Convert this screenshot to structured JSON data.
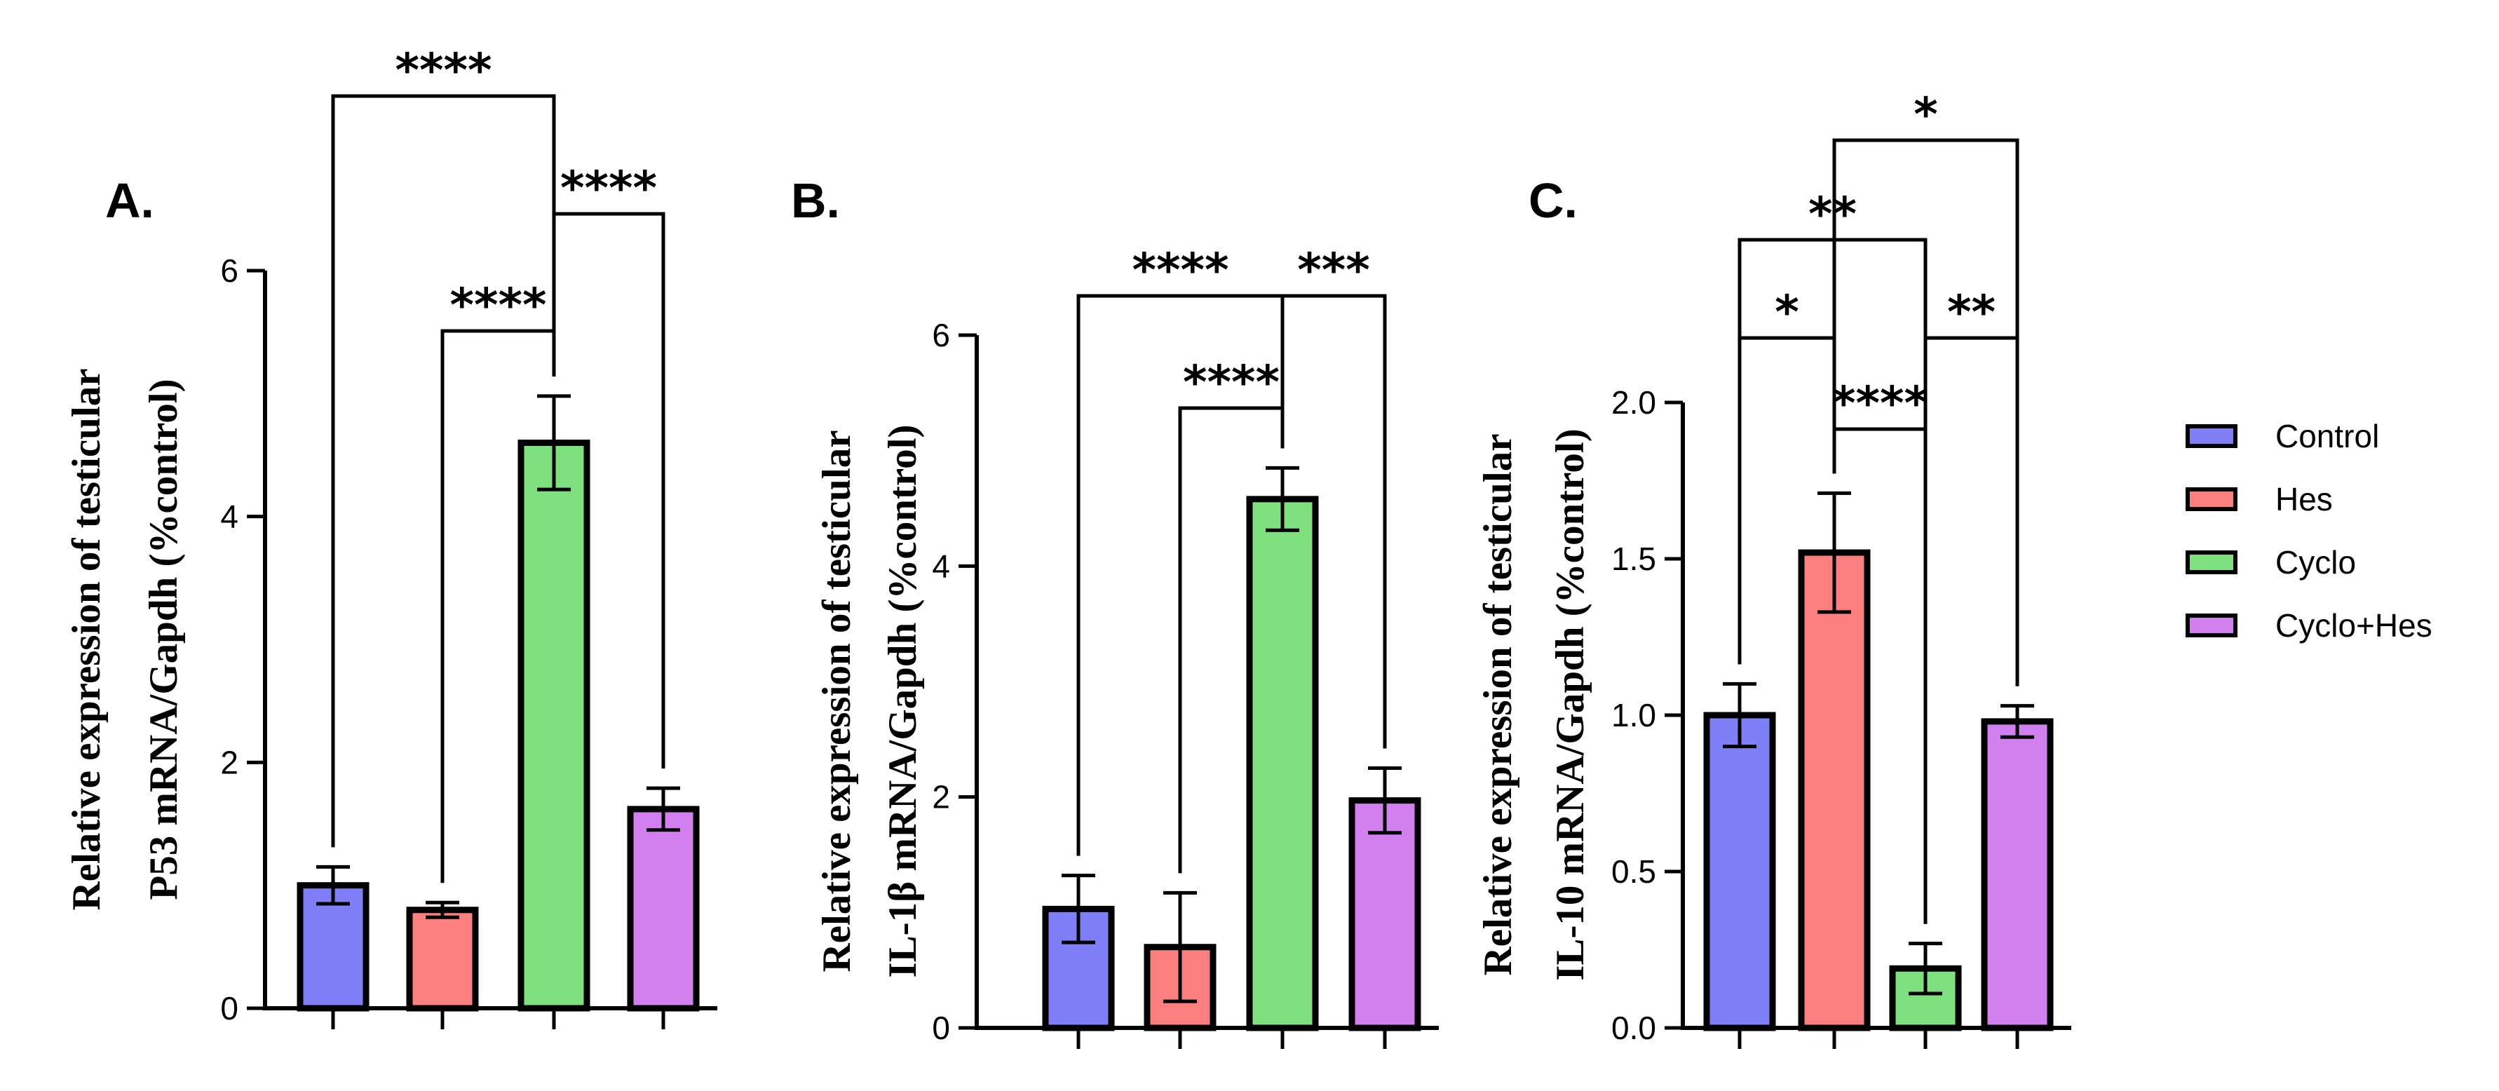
{
  "colors": {
    "Control": "#7f7ff7",
    "Hes": "#fb7f7f",
    "Cyclo": "#7fe07f",
    "Cyclo+Hes": "#d27ff0"
  },
  "legend": [
    "Control",
    "Hes",
    "Cyclo",
    "Cyclo+Hes"
  ],
  "chart_data": [
    {
      "type": "bar",
      "panel": "A.",
      "ylabel": [
        "Relative expression of testicular",
        "P53 mRNA/Gapdh (%control)"
      ],
      "categories": [
        "Control",
        "Hes",
        "Cyclo",
        "Cyclo+Hes"
      ],
      "values": [
        1.0,
        0.8,
        4.6,
        1.62
      ],
      "errors": [
        0.15,
        0.06,
        0.38,
        0.17
      ],
      "ylim": [
        0,
        6
      ],
      "yticks": [
        0,
        2,
        4,
        6
      ],
      "tick_labels": [
        "0",
        "2",
        "4",
        "6"
      ],
      "comparisons": [
        {
          "a": 0,
          "b": 2,
          "label": "****"
        },
        {
          "a": 1,
          "b": 2,
          "label": "****"
        },
        {
          "a": 2,
          "b": 3,
          "label": "****"
        }
      ]
    },
    {
      "type": "bar",
      "panel": "B.",
      "ylabel": [
        "Relative expression of testicular",
        "IL-1β mRNA/Gapdh (%control)"
      ],
      "categories": [
        "Control",
        "Hes",
        "Cyclo",
        "Cyclo+Hes"
      ],
      "values": [
        1.03,
        0.7,
        4.58,
        1.97
      ],
      "errors": [
        0.29,
        0.47,
        0.27,
        0.28
      ],
      "ylim": [
        0,
        6
      ],
      "yticks": [
        0,
        2,
        4,
        6
      ],
      "tick_labels": [
        "0",
        "2",
        "4",
        "6"
      ],
      "comparisons": [
        {
          "a": 0,
          "b": 2,
          "label": "****"
        },
        {
          "a": 1,
          "b": 2,
          "label": "****"
        },
        {
          "a": 2,
          "b": 3,
          "label": "***"
        }
      ]
    },
    {
      "type": "bar",
      "panel": "C.",
      "ylabel": [
        "Relative expression of testicular",
        "IL-10 mRNA/Gapdh (%control)"
      ],
      "categories": [
        "Control",
        "Hes",
        "Cyclo",
        "Cyclo+Hes"
      ],
      "values": [
        1.0,
        1.52,
        0.19,
        0.98
      ],
      "errors": [
        0.1,
        0.19,
        0.08,
        0.05
      ],
      "ylim": [
        0,
        2
      ],
      "yticks": [
        0,
        0.5,
        1,
        1.5,
        2
      ],
      "tick_labels": [
        "0.0",
        "0.5",
        "1.0",
        "1.5",
        "2.0"
      ],
      "comparisons": [
        {
          "a": 0,
          "b": 1,
          "label": "*"
        },
        {
          "a": 1,
          "b": 2,
          "label": "****"
        },
        {
          "a": 2,
          "b": 3,
          "label": "**"
        },
        {
          "a": 0,
          "b": 2,
          "label": "**"
        },
        {
          "a": 1,
          "b": 3,
          "label": "*"
        }
      ]
    }
  ]
}
